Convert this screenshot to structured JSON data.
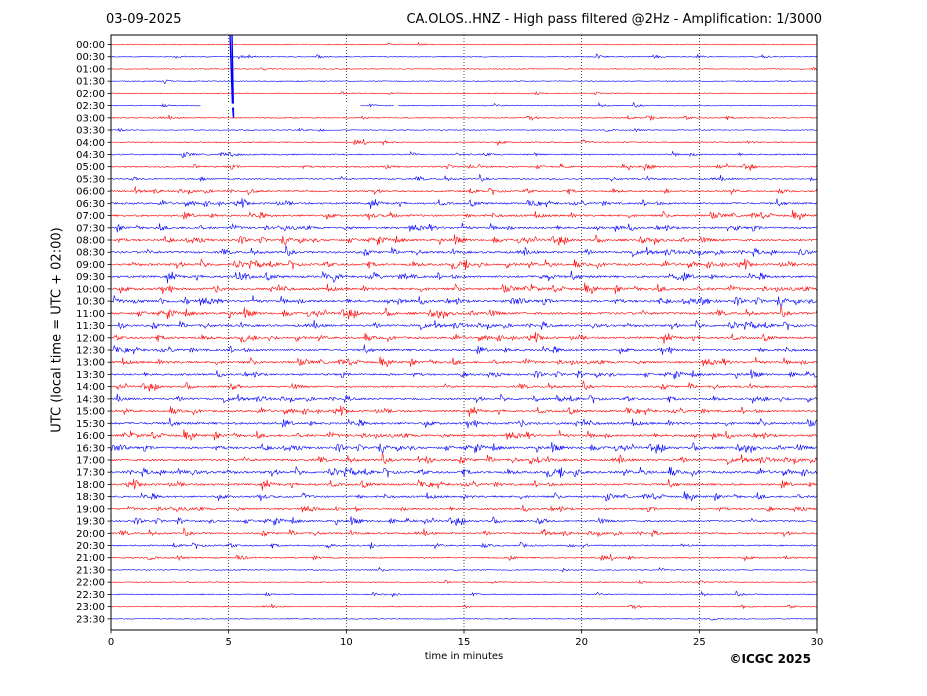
{
  "header": {
    "date": "03-09-2025",
    "title": "CA.OLOS..HNZ - High pass filtered @2Hz - Amplification: 1/3000"
  },
  "footer": {
    "copyright": "©ICGC 2025"
  },
  "colors": {
    "red_trace": "#ff0000",
    "blue_trace": "#0000ff",
    "grid": "#000000"
  },
  "chart_data": {
    "type": "line",
    "title": "CA.OLOS..HNZ - High pass filtered @2Hz - Amplification: 1/3000",
    "xlabel": "time in minutes",
    "ylabel": "UTC (local time = UTC + 02:00)",
    "xlim": [
      0,
      30
    ],
    "x_ticks": [
      "0",
      "5",
      "10",
      "15",
      "20",
      "25",
      "30"
    ],
    "vertical_grid_minutes": [
      5,
      10,
      15,
      20,
      25
    ],
    "rows": [
      "00:00",
      "00:30",
      "01:00",
      "01:30",
      "02:00",
      "02:30",
      "03:00",
      "03:30",
      "04:00",
      "04:30",
      "05:00",
      "05:30",
      "06:00",
      "06:30",
      "07:00",
      "07:30",
      "08:00",
      "08:30",
      "09:00",
      "09:30",
      "10:00",
      "10:30",
      "11:00",
      "11:30",
      "12:00",
      "12:30",
      "13:00",
      "13:30",
      "14:00",
      "14:30",
      "15:00",
      "15:30",
      "16:00",
      "16:30",
      "17:00",
      "17:30",
      "18:00",
      "18:30",
      "19:00",
      "19:30",
      "20:00",
      "20:30",
      "21:00",
      "21:30",
      "22:00",
      "22:30",
      "23:00",
      "23:30"
    ],
    "row_colors": [
      "red",
      "blue"
    ],
    "activity_levels": [
      0.05,
      0.12,
      0.06,
      0.08,
      0.08,
      0.1,
      0.15,
      0.08,
      0.25,
      0.3,
      0.35,
      0.35,
      0.45,
      0.6,
      0.65,
      0.65,
      0.7,
      0.75,
      0.75,
      0.8,
      0.8,
      0.85,
      0.8,
      0.7,
      0.7,
      0.7,
      0.7,
      0.6,
      0.55,
      0.6,
      0.65,
      0.75,
      0.75,
      0.75,
      0.8,
      0.8,
      0.7,
      0.6,
      0.55,
      0.55,
      0.5,
      0.35,
      0.35,
      0.15,
      0.15,
      0.15,
      0.08,
      0.04
    ],
    "events": [
      {
        "row": "00:00",
        "minute": 5.1,
        "label": "large transient spanning 00:00-03:00"
      },
      {
        "row": "02:30",
        "minute": 10.6,
        "label": "data gap"
      }
    ]
  }
}
